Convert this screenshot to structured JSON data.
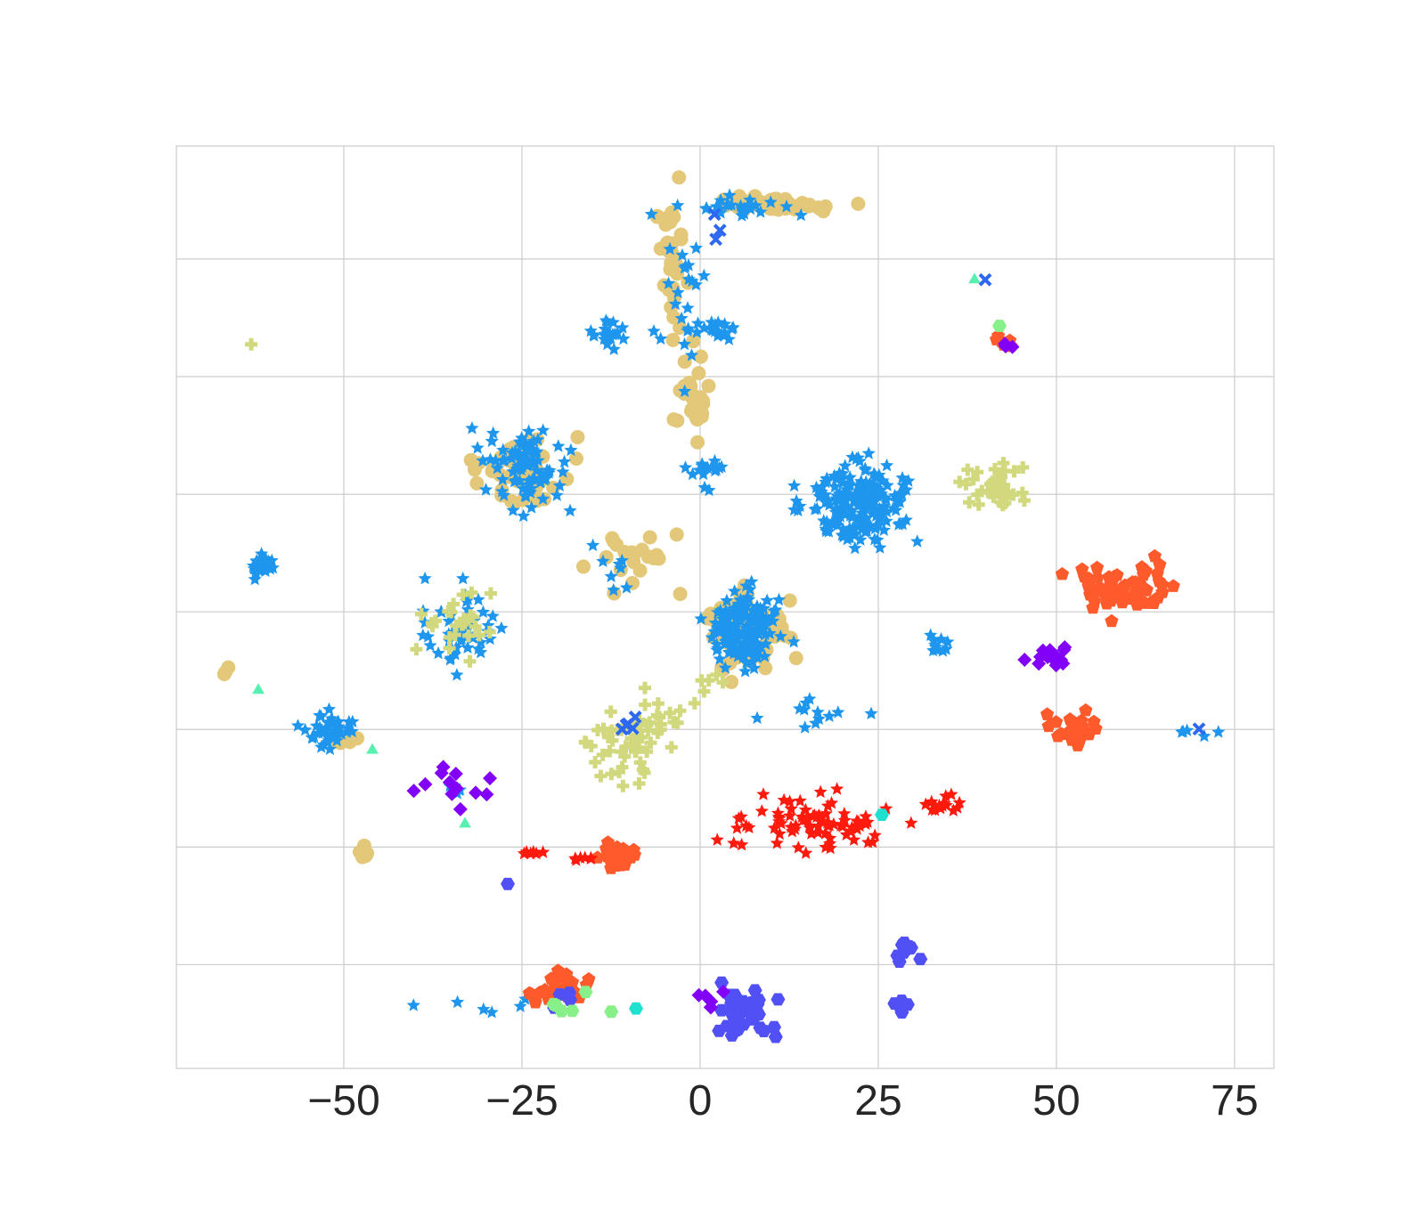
{
  "chart_data": {
    "type": "scatter",
    "title": "",
    "xlabel": "",
    "ylabel": "",
    "xlim": [
      -73.5,
      80.5
    ],
    "ylim": [
      0,
      100
    ],
    "xticks": [
      -50,
      -25,
      0,
      25,
      50,
      75
    ],
    "xtick_labels": [
      "−50",
      "−25",
      "0",
      "25",
      "50",
      "75"
    ],
    "y_gridlines": [
      11.25,
      24,
      36.75,
      49.5,
      62.25,
      75,
      87.75
    ],
    "y_tick_labels_shown": false,
    "grid": true,
    "legend": "none",
    "series": [
      {
        "marker": "circle",
        "color": "#e2c878",
        "clusters": [
          {
            "cx": 12,
            "cy": 93.6,
            "rx": 7,
            "ry": 0.6,
            "n": 60
          },
          {
            "cx": -4,
            "cy": 87,
            "rx": 1.5,
            "ry": 6,
            "n": 30
          },
          {
            "cx": -1,
            "cy": 73,
            "rx": 2,
            "ry": 5,
            "n": 25
          },
          {
            "cx": -25,
            "cy": 64.5,
            "rx": 5,
            "ry": 3.5,
            "n": 45
          },
          {
            "cx": -10,
            "cy": 55.5,
            "rx": 6,
            "ry": 2.5,
            "n": 20
          },
          {
            "cx": 6,
            "cy": 47.5,
            "rx": 5.5,
            "ry": 3.5,
            "n": 60
          },
          {
            "cx": -47,
            "cy": 23.5,
            "rx": 0.6,
            "ry": 1,
            "n": 5
          },
          {
            "cx": -66,
            "cy": 43,
            "rx": 0.8,
            "ry": 0.5,
            "n": 3
          },
          {
            "cx": -50,
            "cy": 35.5,
            "rx": 1.5,
            "ry": 0.6,
            "n": 5
          }
        ]
      },
      {
        "marker": "star",
        "color": "#1e96ee",
        "clusters": [
          {
            "cx": 5,
            "cy": 93.5,
            "rx": 6,
            "ry": 1,
            "n": 25
          },
          {
            "cx": -3,
            "cy": 83,
            "rx": 3,
            "ry": 6,
            "n": 25
          },
          {
            "cx": -13,
            "cy": 79.5,
            "rx": 2,
            "ry": 1.2,
            "n": 20
          },
          {
            "cx": 3,
            "cy": 80.5,
            "rx": 2.5,
            "ry": 1.2,
            "n": 15
          },
          {
            "cx": -25,
            "cy": 65,
            "rx": 4.5,
            "ry": 3.2,
            "n": 90
          },
          {
            "cx": 22,
            "cy": 61.5,
            "rx": 5.5,
            "ry": 3.5,
            "n": 200
          },
          {
            "cx": 6,
            "cy": 47.5,
            "rx": 4.5,
            "ry": 3.3,
            "n": 150
          },
          {
            "cx": -61.5,
            "cy": 54.5,
            "rx": 1.5,
            "ry": 1,
            "n": 25
          },
          {
            "cx": -52.5,
            "cy": 36.5,
            "rx": 2.5,
            "ry": 1.8,
            "n": 40
          },
          {
            "cx": -34,
            "cy": 47.5,
            "rx": 5,
            "ry": 3.5,
            "n": 45
          },
          {
            "cx": 16,
            "cy": 38,
            "rx": 5,
            "ry": 2,
            "n": 12
          },
          {
            "cx": 34,
            "cy": 46,
            "rx": 1.5,
            "ry": 1.5,
            "n": 10
          },
          {
            "cx": 1,
            "cy": 65,
            "rx": 2.5,
            "ry": 1.5,
            "n": 15
          },
          {
            "cx": -12,
            "cy": 53.5,
            "rx": 4,
            "ry": 2,
            "n": 8
          },
          {
            "cx": 69,
            "cy": 36.5,
            "rx": 3,
            "ry": 0.6,
            "n": 5
          },
          {
            "cx": -30,
            "cy": 7,
            "rx": 8,
            "ry": 1,
            "n": 6
          },
          {
            "cx": -34,
            "cy": 30.5,
            "rx": 2,
            "ry": 0.5,
            "n": 5
          }
        ]
      },
      {
        "marker": "plus",
        "color": "#d2d87e",
        "clusters": [
          {
            "cx": -9,
            "cy": 36,
            "rx": 5,
            "ry": 3.5,
            "n": 60
          },
          {
            "cx": 42,
            "cy": 63,
            "rx": 3.5,
            "ry": 2,
            "n": 40
          },
          {
            "cx": -34,
            "cy": 48,
            "rx": 4,
            "ry": 3,
            "n": 25
          },
          {
            "cx": 2,
            "cy": 41,
            "rx": 2,
            "ry": 1.5,
            "n": 6
          },
          {
            "cx": -63,
            "cy": 78.5,
            "rx": 0.3,
            "ry": 0.3,
            "n": 1
          }
        ]
      },
      {
        "marker": "pentagon",
        "color": "#ff5a2c",
        "clusters": [
          {
            "cx": 59,
            "cy": 52,
            "rx": 6,
            "ry": 2.2,
            "n": 60
          },
          {
            "cx": 52,
            "cy": 37,
            "rx": 3,
            "ry": 1.8,
            "n": 25
          },
          {
            "cx": -12,
            "cy": 23,
            "rx": 3,
            "ry": 1.5,
            "n": 30
          },
          {
            "cx": -20,
            "cy": 8.2,
            "rx": 3,
            "ry": 1.5,
            "n": 30
          },
          {
            "cx": 42,
            "cy": 78.5,
            "rx": 1.5,
            "ry": 0.8,
            "n": 8
          }
        ]
      },
      {
        "marker": "star",
        "color": "#ff1a0e",
        "clusters": [
          {
            "cx": 16,
            "cy": 26.5,
            "rx": 8.5,
            "ry": 2.5,
            "n": 80
          },
          {
            "cx": 34,
            "cy": 28.5,
            "rx": 2,
            "ry": 0.9,
            "n": 15
          },
          {
            "cx": -23,
            "cy": 23.5,
            "rx": 2,
            "ry": 0.5,
            "n": 6
          },
          {
            "cx": -16,
            "cy": 22.5,
            "rx": 1.5,
            "ry": 1,
            "n": 6
          }
        ]
      },
      {
        "marker": "hexagon",
        "color": "#5150f5",
        "clusters": [
          {
            "cx": 6,
            "cy": 6,
            "rx": 4,
            "ry": 2.2,
            "n": 40
          },
          {
            "cx": 29,
            "cy": 13,
            "rx": 2,
            "ry": 1.2,
            "n": 10
          },
          {
            "cx": 28.5,
            "cy": 6.5,
            "rx": 1,
            "ry": 0.8,
            "n": 6
          },
          {
            "cx": -27,
            "cy": 20,
            "rx": 0.4,
            "ry": 0.4,
            "n": 1
          },
          {
            "cx": -20,
            "cy": 7.5,
            "rx": 2,
            "ry": 0.8,
            "n": 5
          }
        ]
      },
      {
        "marker": "diamond",
        "color": "#8200f8",
        "clusters": [
          {
            "cx": 49.5,
            "cy": 44.5,
            "rx": 2.5,
            "ry": 0.8,
            "n": 15
          },
          {
            "cx": -35,
            "cy": 30.5,
            "rx": 5,
            "ry": 2.5,
            "n": 12
          },
          {
            "cx": 1,
            "cy": 7.5,
            "rx": 1.5,
            "ry": 1,
            "n": 6
          },
          {
            "cx": 43.5,
            "cy": 78.5,
            "rx": 0.8,
            "ry": 0.5,
            "n": 3
          }
        ]
      },
      {
        "marker": "hexagon",
        "color": "#88f088",
        "clusters": [
          {
            "cx": -19,
            "cy": 7,
            "rx": 5,
            "ry": 0.8,
            "n": 6
          },
          {
            "cx": 42,
            "cy": 80.5,
            "rx": 0.3,
            "ry": 0.3,
            "n": 1
          }
        ]
      },
      {
        "marker": "triangle",
        "color": "#58f0b0",
        "clusters": [
          {
            "cx": -62,
            "cy": 41,
            "rx": 0.3,
            "ry": 0.3,
            "n": 1
          },
          {
            "cx": -46,
            "cy": 34.5,
            "rx": 0.3,
            "ry": 0.3,
            "n": 1
          },
          {
            "cx": -33,
            "cy": 26.5,
            "rx": 0.3,
            "ry": 0.3,
            "n": 1
          },
          {
            "cx": 38.5,
            "cy": 85.5,
            "rx": 0.3,
            "ry": 0.3,
            "n": 1
          }
        ]
      },
      {
        "marker": "hexagon",
        "color": "#20e0d0",
        "clusters": [
          {
            "cx": -9,
            "cy": 6.5,
            "rx": 0.3,
            "ry": 0.3,
            "n": 1
          },
          {
            "cx": 25.5,
            "cy": 27.5,
            "rx": 0.3,
            "ry": 0.3,
            "n": 1
          }
        ]
      },
      {
        "marker": "x",
        "color": "#2e68f0",
        "clusters": [
          {
            "cx": 40,
            "cy": 85.5,
            "rx": 0.3,
            "ry": 0.3,
            "n": 1
          },
          {
            "cx": -10,
            "cy": 37,
            "rx": 1.5,
            "ry": 1,
            "n": 5
          },
          {
            "cx": 3,
            "cy": 91,
            "rx": 1,
            "ry": 1,
            "n": 3
          },
          {
            "cx": 70,
            "cy": 36.8,
            "rx": 0.3,
            "ry": 0.3,
            "n": 1
          }
        ]
      }
    ]
  }
}
